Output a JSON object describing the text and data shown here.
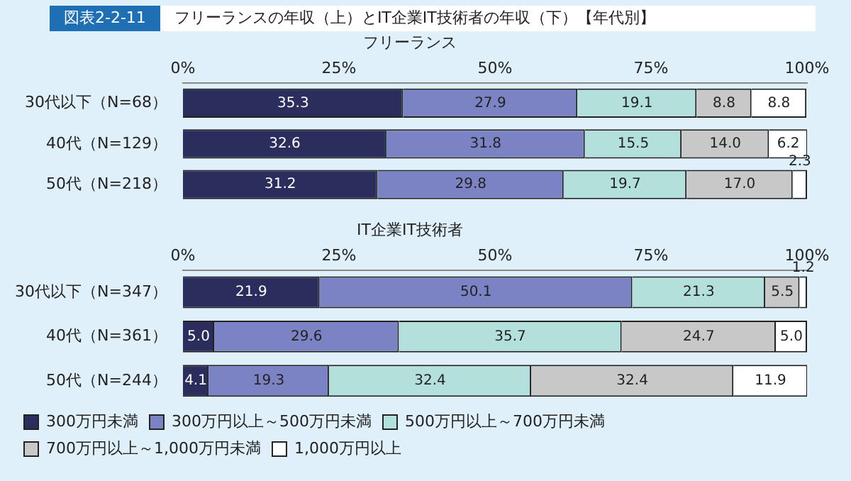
{
  "chart_data": [
    {
      "type": "bar",
      "orientation": "horizontal",
      "stacked": true,
      "title": "フリーランス",
      "annotations": [
        "図表2-2-11",
        "フリーランスの年収（上）とIT企業IT技術者の年収（下）【年代別】"
      ],
      "categories": [
        "30代以下（N=68）",
        "40代（N=129）",
        "50代（N=218）"
      ],
      "series": [
        {
          "color": "#2b2d5c",
          "values": [
            35.3,
            32.6,
            31.2
          ],
          "value_labels": [
            "35.3",
            "32.6",
            "31.2"
          ]
        },
        {
          "color": "#7b83c4",
          "values": [
            27.9,
            31.8,
            29.8
          ],
          "value_labels": [
            "27.9",
            "31.8",
            "29.8"
          ]
        },
        {
          "color": "#b4e0dc",
          "values": [
            19.1,
            15.5,
            19.7
          ],
          "value_labels": [
            "19.1",
            "15.5",
            "19.7"
          ]
        },
        {
          "color": "#c8c8c8",
          "values": [
            8.8,
            14.0,
            17.0
          ],
          "value_labels": [
            "8.8",
            "14.0",
            "17.0"
          ]
        },
        {
          "color": "#ffffff",
          "values": [
            8.8,
            6.2,
            2.3
          ],
          "value_labels": [
            "8.8",
            "6.2",
            "2.3"
          ]
        }
      ],
      "xlim": [
        0,
        100
      ],
      "xticks": [
        {
          "value": 0,
          "label": "0%"
        },
        {
          "value": 25,
          "label": "25%"
        },
        {
          "value": 50,
          "label": "50%"
        },
        {
          "value": 75,
          "label": "75%"
        },
        {
          "value": 100,
          "label": "100%"
        }
      ],
      "grid": false,
      "legend": false
    },
    {
      "type": "bar",
      "orientation": "horizontal",
      "stacked": true,
      "title": "IT企業IT技術者",
      "categories": [
        "30代以下（N=347）",
        "40代（N=361）",
        "50代（N=244）"
      ],
      "series": [
        {
          "name": "300万円未満",
          "color": "#2b2d5c",
          "values": [
            21.9,
            5.0,
            4.1
          ],
          "value_labels": [
            "21.9",
            "5.0",
            "4.1"
          ]
        },
        {
          "name": "300万円以上～500万円未満",
          "color": "#7b83c4",
          "values": [
            50.1,
            29.6,
            19.3
          ],
          "value_labels": [
            "50.1",
            "29.6",
            "19.3"
          ]
        },
        {
          "name": "500万円以上～700万円未満",
          "color": "#b4e0dc",
          "values": [
            21.3,
            35.7,
            32.4
          ],
          "value_labels": [
            "21.3",
            "35.7",
            "32.4"
          ]
        },
        {
          "name": "700万円以上～1,000万円未満",
          "color": "#c8c8c8",
          "values": [
            5.5,
            24.7,
            32.4
          ],
          "value_labels": [
            "5.5",
            "24.7",
            "32.4"
          ]
        },
        {
          "name": "1,000万円以上",
          "color": "#ffffff",
          "values": [
            1.2,
            5.0,
            11.9
          ],
          "value_labels": [
            "1.2",
            "5.0",
            "11.9"
          ]
        }
      ],
      "xlim": [
        0,
        100
      ],
      "xticks": [
        {
          "value": 0,
          "label": "0%"
        },
        {
          "value": 25,
          "label": "25%"
        },
        {
          "value": 50,
          "label": "50%"
        },
        {
          "value": 75,
          "label": "75%"
        },
        {
          "value": 100,
          "label": "100%"
        }
      ],
      "grid": false,
      "legend": "bottom"
    }
  ]
}
